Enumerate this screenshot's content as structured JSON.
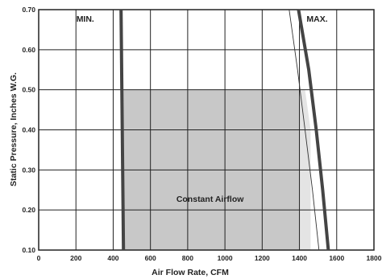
{
  "chart_data": {
    "type": "line",
    "title": "",
    "xlabel": "Air Flow Rate, CFM",
    "ylabel": "Static Pressure, Inches W.G.",
    "xlim": [
      0,
      1800
    ],
    "ylim": [
      0.1,
      0.7
    ],
    "x_ticks": [
      "0",
      "200",
      "400",
      "600",
      "800",
      "1000",
      "1200",
      "1400",
      "1600",
      "1800"
    ],
    "y_ticks": [
      "0.10",
      "0.20",
      "0.30",
      "0.40",
      "0.50",
      "0.60",
      "0.70"
    ],
    "grid": true,
    "legend": "none",
    "series": [
      {
        "name": "MIN.",
        "style": "thick",
        "points": [
          [
            442,
            0.7
          ],
          [
            455,
            0.1
          ]
        ]
      },
      {
        "name": "MAX.",
        "style": "thick",
        "points": [
          [
            1395,
            0.7
          ],
          [
            1450,
            0.55
          ],
          [
            1490,
            0.4
          ],
          [
            1525,
            0.25
          ],
          [
            1555,
            0.1
          ]
        ]
      },
      {
        "name": "",
        "style": "thin",
        "points": [
          [
            1345,
            0.7
          ],
          [
            1390,
            0.55
          ],
          [
            1430,
            0.4
          ],
          [
            1470,
            0.25
          ],
          [
            1505,
            0.1
          ]
        ]
      }
    ],
    "regions": [
      {
        "name": "Constant Airflow",
        "color": "#c8c8c8",
        "points": [
          [
            450,
            0.5
          ],
          [
            1400,
            0.5
          ],
          [
            1400,
            0.1
          ],
          [
            450,
            0.1
          ]
        ]
      },
      {
        "name": "",
        "color": "#e4e4e4",
        "points": [
          [
            1400,
            0.5
          ],
          [
            1430,
            0.5
          ],
          [
            1460,
            0.4
          ],
          [
            1460,
            0.1
          ],
          [
            1400,
            0.1
          ]
        ]
      }
    ],
    "annotations": [
      {
        "text": "MIN.",
        "x": 250,
        "y": 0.67
      },
      {
        "text": "MAX.",
        "x": 1495,
        "y": 0.67
      },
      {
        "text": "Constant Airflow",
        "x": 920,
        "y": 0.22
      }
    ],
    "colors": {
      "grid": "#222222",
      "curve": "#444444",
      "thin_curve": "#333333"
    }
  }
}
